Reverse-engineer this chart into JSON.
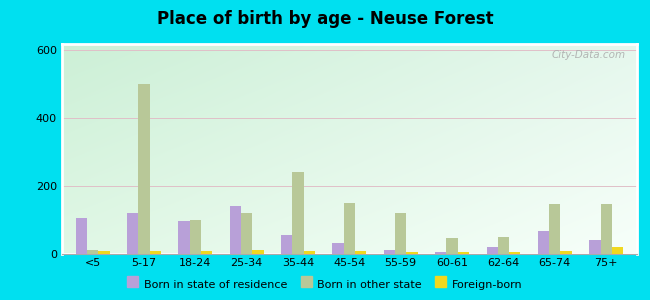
{
  "title": "Place of birth by age - Neuse Forest",
  "categories": [
    "<5",
    "5-17",
    "18-24",
    "25-34",
    "35-44",
    "45-54",
    "55-59",
    "60-61",
    "62-64",
    "65-74",
    "75+"
  ],
  "born_in_state": [
    105,
    120,
    95,
    140,
    55,
    30,
    10,
    5,
    20,
    65,
    40
  ],
  "born_other_state": [
    10,
    500,
    100,
    120,
    240,
    150,
    120,
    45,
    50,
    145,
    145
  ],
  "foreign_born": [
    8,
    7,
    7,
    10,
    7,
    7,
    5,
    5,
    5,
    7,
    20
  ],
  "bar_color_state": "#b8a0d8",
  "bar_color_other": "#b8c898",
  "bar_color_foreign": "#f0d820",
  "ylim": [
    0,
    620
  ],
  "yticks": [
    0,
    200,
    400,
    600
  ],
  "outer_bg": "#00e0f0",
  "legend_labels": [
    "Born in state of residence",
    "Born in other state",
    "Foreign-born"
  ],
  "watermark": "City-Data.com"
}
